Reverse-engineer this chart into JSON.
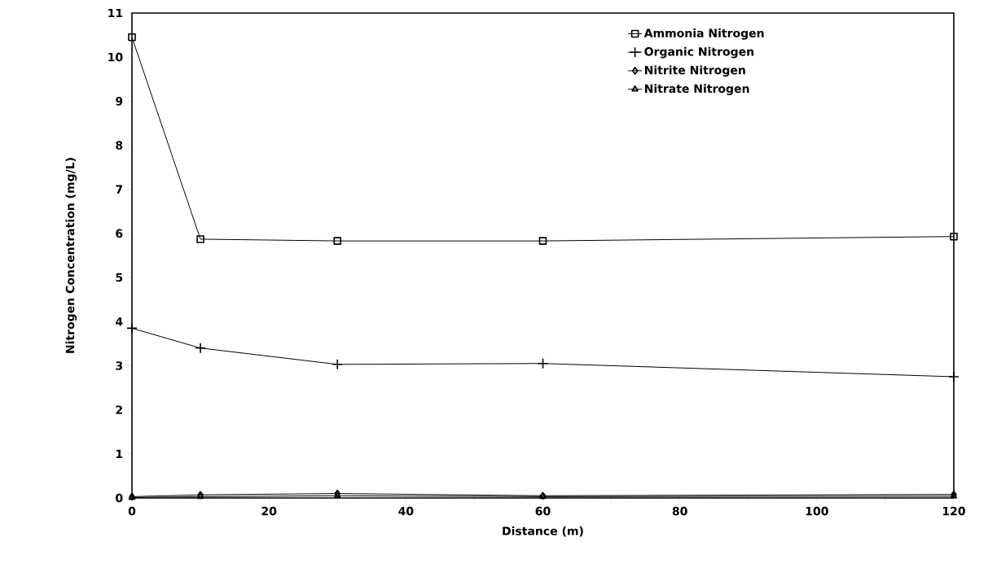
{
  "chart_data": {
    "type": "line",
    "xlabel": "Distance (m)",
    "ylabel": "Nitrogen Concentration (mg/L)",
    "x": [
      0,
      10,
      30,
      60,
      120
    ],
    "series": [
      {
        "name": "Ammonia Nitrogen",
        "color": "#000000",
        "marker": "square",
        "values": [
          10.45,
          5.87,
          5.83,
          5.83,
          5.93
        ]
      },
      {
        "name": "Organic Nitrogen",
        "color": "#000000",
        "marker": "cross",
        "values": [
          3.85,
          3.4,
          3.03,
          3.05,
          2.75
        ]
      },
      {
        "name": "Nitrite Nitrogen",
        "color": "#000000",
        "marker": "diamond",
        "values": [
          0.03,
          0.07,
          0.1,
          0.05,
          0.08
        ]
      },
      {
        "name": "Nitrate Nitrogen",
        "color": "#000000",
        "marker": "triangle",
        "values": [
          0.01,
          0.03,
          0.05,
          0.03,
          0.04
        ]
      }
    ],
    "xlim": [
      0,
      120
    ],
    "ylim": [
      0,
      11
    ],
    "xticks": [
      0,
      {
        "value": 10,
        "label": null
      },
      20,
      {
        "value": 30,
        "label": null
      },
      40,
      {
        "value": 50,
        "label": null
      },
      60,
      {
        "value": 70,
        "label": null
      },
      80,
      {
        "value": 90,
        "label": null
      },
      100,
      {
        "value": 110,
        "label": null
      },
      120
    ],
    "yticks": [
      0,
      1,
      2,
      3,
      4,
      5,
      6,
      7,
      8,
      9,
      10,
      11
    ],
    "grid": false,
    "legend": "top right",
    "line_style": "solid"
  }
}
